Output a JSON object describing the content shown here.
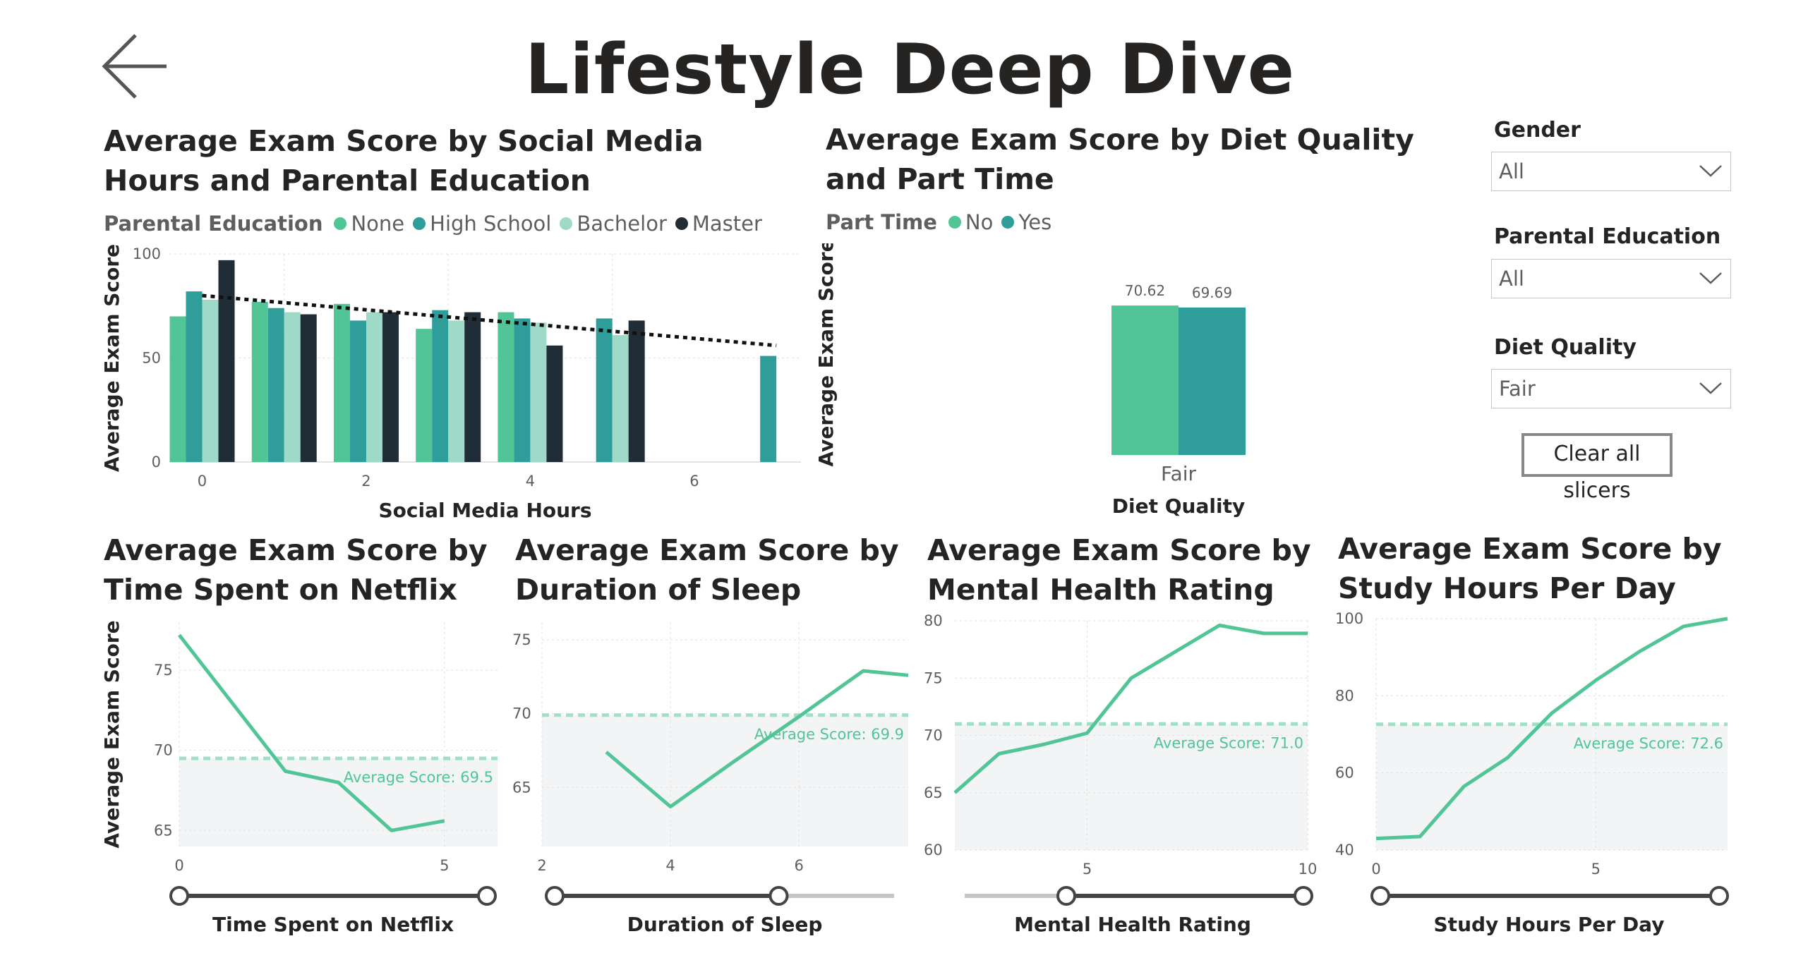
{
  "page": {
    "title": "Lifestyle Deep Dive",
    "back_icon": "arrow-left-icon"
  },
  "colors": {
    "green": "#52c596",
    "teal": "#2f9d9a",
    "light": "#9fd9c8",
    "dark": "#202d36",
    "line": "#52c596",
    "band": "#f3f4f5"
  },
  "slicers": {
    "gender": {
      "label": "Gender",
      "value": "All"
    },
    "parental_education": {
      "label": "Parental Education",
      "value": "All"
    },
    "diet_quality": {
      "label": "Diet Quality",
      "value": "Fair"
    },
    "clear_label": "Clear all slicers"
  },
  "chart_data": [
    {
      "id": "social",
      "type": "bar",
      "title": "Average Exam Score by Social Media Hours and Parental Education",
      "xlabel": "Social Media Hours",
      "ylabel": "Average Exam Score",
      "legend_title": "Parental Education",
      "xlim": [
        -0.4,
        7.3
      ],
      "ylim": [
        0,
        100
      ],
      "yticks": [
        0,
        50,
        100
      ],
      "xticks": [
        0,
        2,
        4,
        6
      ],
      "grid": true,
      "trendline": {
        "x": [
          0,
          7
        ],
        "y": [
          80,
          56
        ]
      },
      "series": [
        {
          "name": "None",
          "color": "#52c596",
          "x": [
            0,
            1,
            2,
            3,
            4
          ],
          "values": [
            70,
            77,
            76,
            64,
            72
          ]
        },
        {
          "name": "High School",
          "color": "#2f9d9a",
          "x": [
            0,
            1,
            2,
            3,
            4,
            5,
            7
          ],
          "values": [
            82,
            74,
            68,
            73,
            69,
            69,
            51
          ]
        },
        {
          "name": "Bachelor",
          "color": "#9fd9c8",
          "x": [
            0,
            1,
            2,
            3,
            4,
            5
          ],
          "values": [
            78,
            72,
            72,
            68,
            67,
            61
          ]
        },
        {
          "name": "Master",
          "color": "#202d36",
          "x": [
            0,
            1,
            2,
            3,
            4,
            5
          ],
          "values": [
            97,
            71,
            72,
            72,
            56,
            68
          ]
        }
      ]
    },
    {
      "id": "diet",
      "type": "bar",
      "title": "Average Exam Score by Diet Quality and Part Time",
      "xlabel": "Diet Quality",
      "ylabel": "Average Exam Score",
      "legend_title": "Part Time",
      "categories": [
        "Fair"
      ],
      "series": [
        {
          "name": "No",
          "color": "#52c596",
          "values": [
            70.62
          ],
          "label": "70.62"
        },
        {
          "name": "Yes",
          "color": "#2f9d9a",
          "values": [
            69.69
          ],
          "label": "69.69"
        }
      ]
    },
    {
      "id": "netflix",
      "type": "line",
      "title": "Average Exam Score by Time Spent on Netflix",
      "xlabel": "Time Spent on Netflix",
      "ylabel": "Average Exam Score",
      "xlim": [
        0,
        6
      ],
      "ylim": [
        64,
        78
      ],
      "xticks": [
        0,
        5
      ],
      "yticks": [
        65,
        70,
        75
      ],
      "average": 69.5,
      "average_label": "Average Score: 69.5",
      "x": [
        0,
        2,
        3,
        4,
        5
      ],
      "y": [
        77.2,
        68.7,
        68.0,
        65.0,
        65.6
      ],
      "slider": [
        0,
        1
      ]
    },
    {
      "id": "sleep",
      "type": "line",
      "title": "Average Exam Score by Duration of Sleep",
      "xlabel": "Duration of Sleep",
      "ylabel": "",
      "xlim": [
        2,
        7.7
      ],
      "ylim": [
        61,
        76.2
      ],
      "xticks": [
        2,
        4,
        6
      ],
      "yticks": [
        65,
        70,
        75
      ],
      "average": 69.9,
      "average_label": "Average Score: 69.9",
      "x": [
        3,
        4,
        5,
        6,
        7,
        7.7
      ],
      "y": [
        67.4,
        63.7,
        66.8,
        69.8,
        72.9,
        72.6
      ],
      "slider": [
        0,
        0.66
      ]
    },
    {
      "id": "mental",
      "type": "line",
      "title": "Average Exam Score by Mental Health Rating",
      "xlabel": "Mental Health Rating",
      "ylabel": "",
      "xlim": [
        2,
        10
      ],
      "ylim": [
        60,
        80
      ],
      "xticks": [
        5,
        10
      ],
      "yticks": [
        60,
        65,
        70,
        75,
        80
      ],
      "average": 71.0,
      "average_label": "Average Score: 71.0",
      "x": [
        2,
        3,
        4,
        5,
        6,
        7,
        8,
        9,
        10
      ],
      "y": [
        65.0,
        68.4,
        69.2,
        70.2,
        75.0,
        77.3,
        79.6,
        78.9,
        78.9
      ],
      "slider": [
        0.3,
        1
      ]
    },
    {
      "id": "study",
      "type": "line",
      "title": "Average Exam Score by Study Hours Per Day",
      "xlabel": "Study Hours Per Day",
      "ylabel": "",
      "xlim": [
        0,
        8
      ],
      "ylim": [
        40,
        100
      ],
      "xticks": [
        0,
        5
      ],
      "yticks": [
        40,
        60,
        80,
        100
      ],
      "average": 72.6,
      "average_label": "Average Score: 72.6",
      "x": [
        0,
        1,
        2,
        3,
        4,
        5,
        6,
        7,
        8
      ],
      "y": [
        43,
        43.5,
        56.5,
        64,
        75.5,
        84,
        91.5,
        98,
        100
      ],
      "slider": [
        0,
        1
      ]
    }
  ]
}
